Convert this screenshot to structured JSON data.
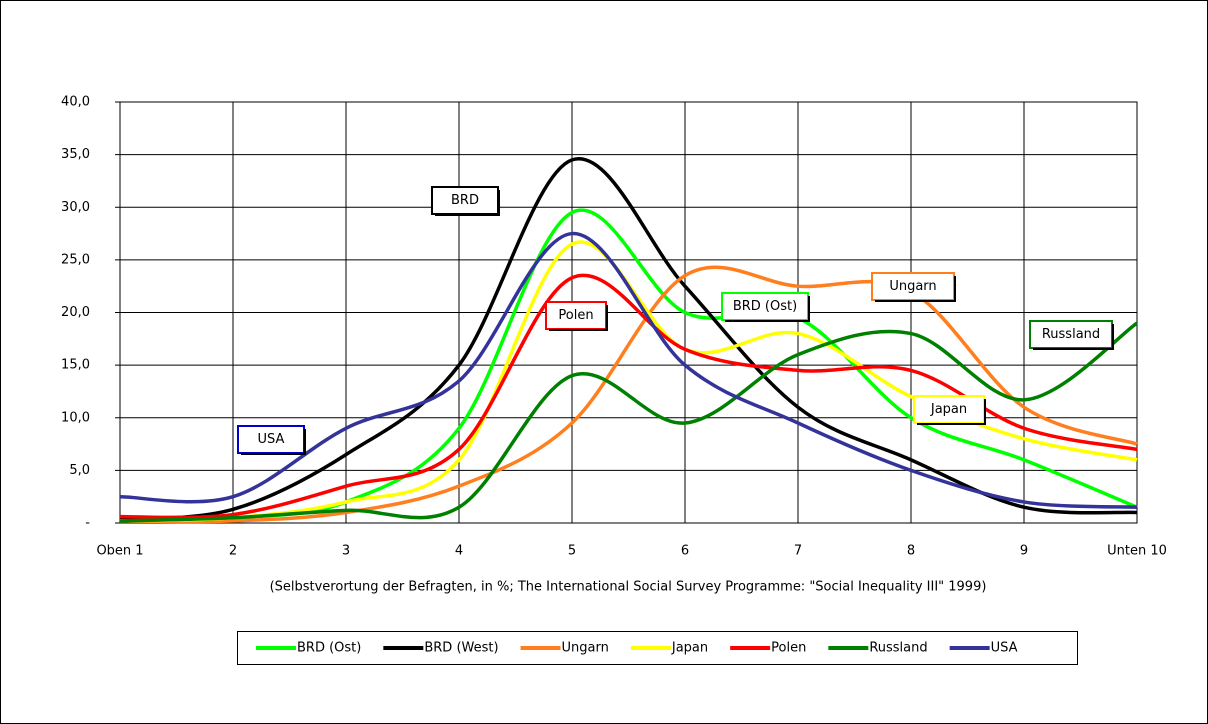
{
  "chart_data": {
    "type": "line",
    "xlabel": "(Selbstverortung der Befragten, in %; The International Social Survey Programme: \"Social Inequality III\" 1999)",
    "categories": [
      "Oben 1",
      "2",
      "3",
      "4",
      "5",
      "6",
      "7",
      "8",
      "9",
      "Unten 10"
    ],
    "ylim": [
      0,
      40
    ],
    "yticks": [
      {
        "value": 0,
        "label": "-"
      },
      {
        "value": 5,
        "label": "5,0"
      },
      {
        "value": 10,
        "label": "10,0"
      },
      {
        "value": 15,
        "label": "15,0"
      },
      {
        "value": 20,
        "label": "20,0"
      },
      {
        "value": 25,
        "label": "25,0"
      },
      {
        "value": 30,
        "label": "30,0"
      },
      {
        "value": 35,
        "label": "35,0"
      },
      {
        "value": 40,
        "label": "40,0"
      }
    ],
    "grid": true,
    "series": [
      {
        "name": "BRD (Ost)",
        "color": "#00ff00",
        "values": [
          0.3,
          0.5,
          2,
          9,
          29.5,
          20,
          19.5,
          10,
          6,
          1.5
        ]
      },
      {
        "name": "BRD (West)",
        "color": "#000000",
        "values": [
          0.3,
          1.3,
          6.5,
          15,
          34.5,
          22.5,
          11,
          6,
          1.5,
          1
        ]
      },
      {
        "name": "Ungarn",
        "color": "#ff7f1e",
        "values": [
          0.2,
          0.2,
          1,
          3.5,
          9.5,
          23.5,
          22.5,
          22,
          11,
          7.5
        ]
      },
      {
        "name": "Japan",
        "color": "#ffff00",
        "values": [
          0.2,
          0.5,
          2,
          6,
          26.5,
          16.5,
          18,
          12,
          8,
          6
        ]
      },
      {
        "name": "Polen",
        "color": "#ff0000",
        "values": [
          0.6,
          0.8,
          3.5,
          7,
          23.3,
          16.5,
          14.5,
          14.5,
          9,
          7
        ]
      },
      {
        "name": "Russland",
        "color": "#008000",
        "values": [
          0.2,
          0.5,
          1.2,
          1.5,
          14,
          9.5,
          16,
          18,
          11.7,
          19
        ]
      },
      {
        "name": "USA",
        "color": "#333399",
        "values": [
          2.5,
          2.5,
          9,
          13.5,
          27.5,
          15,
          9.5,
          5,
          2,
          1.5
        ]
      }
    ],
    "annotations": [
      {
        "text": "BRD",
        "color": "#000000"
      },
      {
        "text": "USA",
        "color": "#0000cc"
      },
      {
        "text": "Polen",
        "color": "#ff0000"
      },
      {
        "text": "BRD (Ost)",
        "color": "#00ff00"
      },
      {
        "text": "Ungarn",
        "color": "#ff7f1e"
      },
      {
        "text": "Russland",
        "color": "#008000"
      },
      {
        "text": "Japan",
        "color": "#ffff00"
      }
    ]
  }
}
